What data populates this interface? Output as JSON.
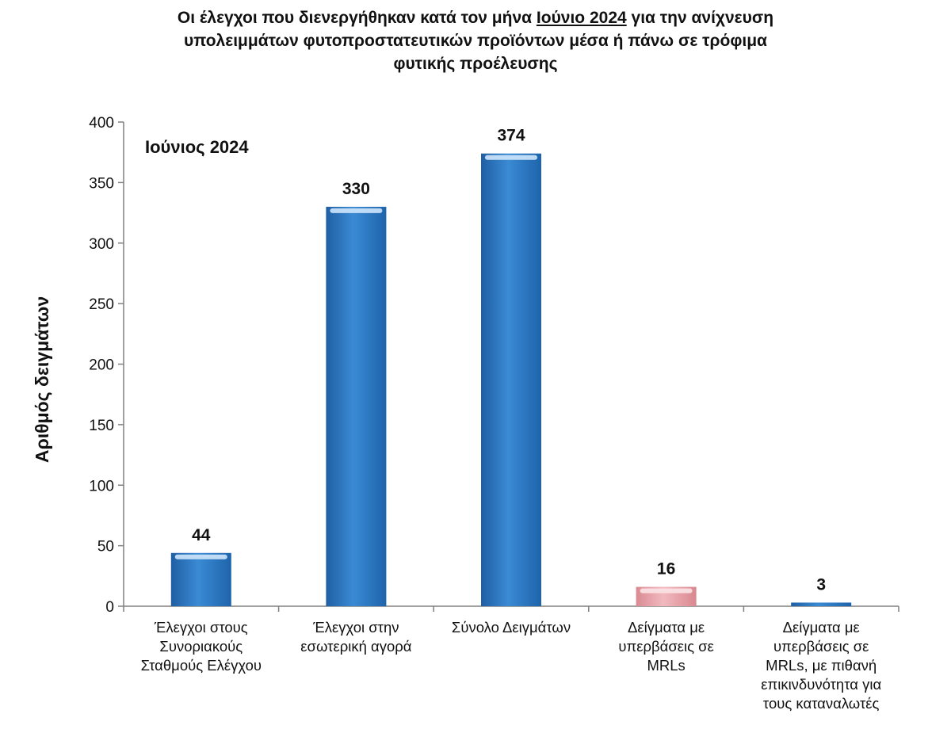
{
  "chart_data": {
    "type": "bar",
    "title": {
      "before": "Οι έλεγχοι που διενεργήθηκαν κατά τον μήνα ",
      "underlined": "Ιούνιο 2024",
      "after": " για την ανίχνευση",
      "line2": "υπολειμμάτων φυτοπροστατευτικών προϊόντων μέσα ή πάνω σε τρόφιμα",
      "line3": "φυτικής προέλευσης"
    },
    "annotation": "Ιούνιος 2024",
    "xlabel": "",
    "ylabel": "Αριθμός δειγμάτων",
    "ylim": [
      0,
      400
    ],
    "yticks": [
      "0",
      "50",
      "100",
      "150",
      "200",
      "250",
      "300",
      "350",
      "400"
    ],
    "categories": [
      "Έλεγχοι στους Συνοριακούς Σταθμούς Ελέγχου",
      "Έλεγχοι στην εσωτερική αγορά",
      "Σύνολο Δειγμάτων",
      "Δείγματα με υπερβάσεις σε MRLs",
      "Δείγματα με υπερβάσεις σε MRLs, με πιθανή επικινδυνότητα για τους καταναλωτές"
    ],
    "category_lines": [
      [
        "Έλεγχοι στους",
        "Συνοριακούς",
        "Σταθμούς Ελέγχου"
      ],
      [
        "Έλεγχοι στην",
        "εσωτερική αγορά"
      ],
      [
        "Σύνολο Δειγμάτων"
      ],
      [
        "Δείγματα με",
        "υπερβάσεις σε",
        "MRLs"
      ],
      [
        "Δείγματα με",
        "υπερβάσεις σε",
        "MRLs, με πιθανή",
        "επικινδυνότητα για",
        "τους καταναλωτές"
      ]
    ],
    "values": [
      44,
      330,
      374,
      16,
      3
    ],
    "data_labels": [
      "44",
      "330",
      "374",
      "16",
      "3"
    ],
    "bar_colors": [
      "#2e78c2",
      "#2e78c2",
      "#2e78c2",
      "#e8a0a6",
      "#2e78c2"
    ],
    "grid": false,
    "legend": "none"
  }
}
